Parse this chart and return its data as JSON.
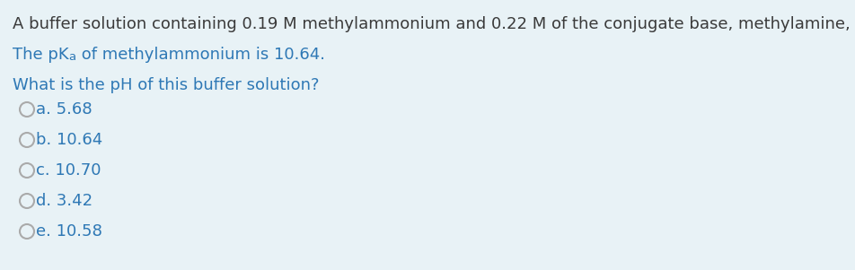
{
  "background_color": "#e8f2f6",
  "line1_text": "A buffer solution containing 0.19 M methylammonium and 0.22 M of the conjugate base, methylamine, was prepared.",
  "line1_color": "#3a3a3a",
  "line2_color": "#2e78b5",
  "line3_color": "#2e78b5",
  "options_color": "#2e78b5",
  "circle_edge_color": "#aaaaaa",
  "font_size": 13.0,
  "sub_font_size": 9.5,
  "options": [
    "a. 5.68",
    "b. 10.64",
    "c. 10.70",
    "d. 3.42",
    "e. 10.58"
  ]
}
